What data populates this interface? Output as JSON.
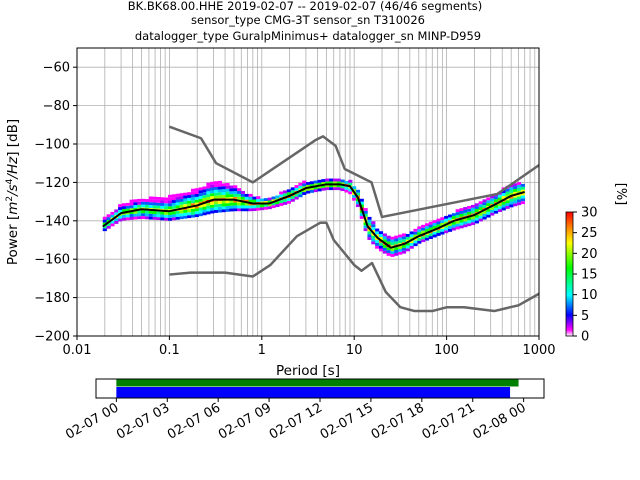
{
  "chart_data": {
    "type": "heatmap",
    "title_lines": [
      "BK.BK68.00.HHE   2019-02-07 -- 2019-02-07  (46/46 segments)",
      "sensor_type CMG-3T sensor_sn T310026",
      "datalogger_type GuralpMinimus+ datalogger_sn MINP-D959"
    ],
    "xlabel": "Period [s]",
    "ylabel_prefix": "Power [",
    "ylabel_m": "m",
    "ylabel_s": "/s",
    "ylabel_hz": "/Hz",
    "ylabel_suffix": "] [dB]",
    "ylabel_sup2": "2",
    "ylabel_sup4": "4",
    "x_scale": "log",
    "xlim": [
      0.01,
      1000
    ],
    "ylim": [
      -200,
      -50
    ],
    "x_ticks": [
      0.01,
      0.1,
      1,
      10,
      100,
      1000
    ],
    "x_tick_labels": [
      "0.01",
      "0.1",
      "1",
      "10",
      "100",
      "1000"
    ],
    "y_ticks": [
      -200,
      -180,
      -160,
      -140,
      -120,
      -100,
      -80,
      -60
    ],
    "y_tick_labels": [
      "−200",
      "−180",
      "−160",
      "−140",
      "−120",
      "−100",
      "−80",
      "−60"
    ],
    "grid": true,
    "colorbar": {
      "label": "[%]",
      "range": [
        0,
        30
      ],
      "ticks": [
        0,
        5,
        10,
        15,
        20,
        25,
        30
      ],
      "tick_labels": [
        "0",
        "5",
        "10",
        "15",
        "20",
        "25",
        "30"
      ]
    },
    "mode_curve": {
      "period": [
        0.019,
        0.03,
        0.05,
        0.1,
        0.2,
        0.3,
        0.5,
        0.8,
        1.2,
        2,
        3,
        5,
        7,
        9,
        11,
        14,
        18,
        25,
        35,
        50,
        80,
        120,
        200,
        350,
        500,
        700
      ],
      "power": [
        -143,
        -136,
        -134,
        -135,
        -132,
        -129,
        -129,
        -131,
        -131,
        -127,
        -123,
        -121,
        -121,
        -122,
        -128,
        -143,
        -149,
        -154,
        -152,
        -148,
        -144,
        -140,
        -137,
        -131,
        -127,
        -125
      ]
    },
    "nlnm": {
      "period": [
        0.1,
        0.17,
        0.4,
        0.8,
        1.24,
        2.4,
        4.3,
        5,
        6,
        10,
        12,
        15.6,
        21.9,
        31.6,
        45,
        70,
        101,
        154,
        328,
        600,
        1000
      ],
      "power": [
        -168,
        -167,
        -167,
        -169,
        -163,
        -148,
        -141,
        -141,
        -150,
        -163,
        -166,
        -162,
        -177,
        -185,
        -187,
        -187,
        -185,
        -185,
        -187,
        -184,
        -178
      ]
    },
    "nhnm": {
      "period": [
        0.1,
        0.22,
        0.32,
        0.8,
        3.8,
        4.6,
        6.3,
        7.9,
        15.4,
        20,
        354.8,
        1000
      ],
      "power": [
        -91,
        -97,
        -110,
        -120,
        -98,
        -96,
        -101,
        -113,
        -120,
        -138,
        -126,
        -111
      ]
    },
    "spread": {
      "period": [
        0.019,
        0.03,
        0.05,
        0.1,
        0.2,
        0.3,
        0.5,
        0.8,
        1.2,
        2,
        3,
        5,
        7,
        9,
        11,
        14,
        18,
        25,
        35,
        50,
        80,
        120,
        200,
        350,
        500,
        700
      ],
      "low": [
        -146,
        -140,
        -139,
        -140,
        -138,
        -136,
        -135,
        -135,
        -134,
        -131,
        -126,
        -124,
        -124,
        -126,
        -133,
        -149,
        -155,
        -159,
        -157,
        -152,
        -148,
        -145,
        -142,
        -136,
        -133,
        -131
      ],
      "high": [
        -140,
        -132,
        -129,
        -128,
        -124,
        -120,
        -122,
        -128,
        -129,
        -124,
        -120,
        -119,
        -119,
        -120,
        -124,
        -137,
        -145,
        -150,
        -148,
        -144,
        -140,
        -136,
        -132,
        -126,
        -121,
        -121
      ]
    },
    "data_availability": {
      "x_tick_labels": [
        "02-07 00",
        "02-07 03",
        "02-07 06",
        "02-07 09",
        "02-07 12",
        "02-07 15",
        "02-07 18",
        "02-07 21",
        "02-08 00"
      ],
      "range_hours": [
        -1.2,
        25.2
      ],
      "green_bar_hours": [
        0,
        23.7
      ],
      "blue_bar_hours": [
        0,
        23.2
      ],
      "green_color": "#008000",
      "blue_color": "#0000ff"
    },
    "colors": {
      "mode": "#000000",
      "noise_model": "#666666",
      "grid": "#b0b0b0"
    }
  }
}
